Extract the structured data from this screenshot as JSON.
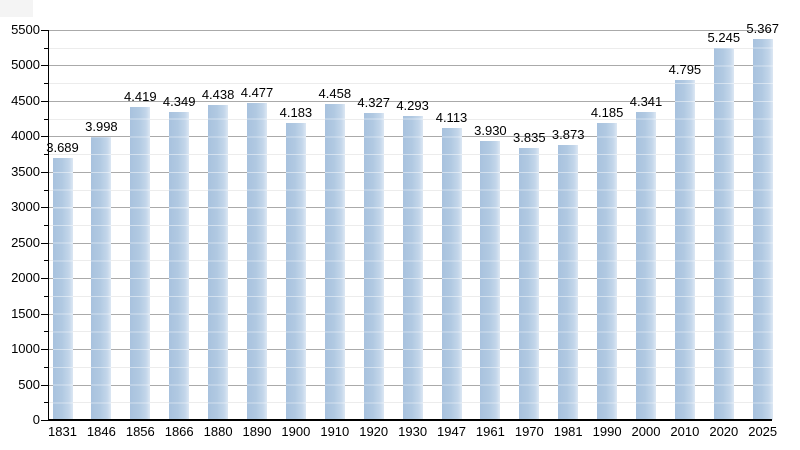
{
  "chart_data": {
    "type": "bar",
    "title": "",
    "xlabel": "",
    "ylabel": "",
    "categories": [
      "1831",
      "1846",
      "1856",
      "1866",
      "1880",
      "1890",
      "1900",
      "1910",
      "1920",
      "1930",
      "1947",
      "1961",
      "1970",
      "1981",
      "1990",
      "2000",
      "2010",
      "2020",
      "2025"
    ],
    "values": [
      3689,
      3998,
      4419,
      4349,
      4438,
      4477,
      4183,
      4458,
      4327,
      4293,
      4113,
      3930,
      3835,
      3873,
      4185,
      4341,
      4795,
      5245,
      5367
    ],
    "value_labels": [
      "3.689",
      "3.998",
      "4.419",
      "4.349",
      "4.438",
      "4.477",
      "4.183",
      "4.458",
      "4.327",
      "4.293",
      "4.113",
      "3.930",
      "3.835",
      "3.873",
      "4.185",
      "4.341",
      "4.795",
      "5.245",
      "5.367"
    ],
    "ylim": [
      0,
      5500
    ],
    "y_major_step": 500,
    "y_minor_step": 250,
    "y_tick_labels": [
      "0",
      "500",
      "1000",
      "1500",
      "2000",
      "2500",
      "3000",
      "3500",
      "4000",
      "4500",
      "5000",
      "5500"
    ],
    "grid": "on",
    "legend": "none",
    "colors": {
      "bar_main": "#b1c9e2",
      "bar_edge_light": "#dce7f3",
      "major_grid": "#aaaaaa",
      "minor_grid": "#ececec",
      "axis": "#000000",
      "label_text": "#000000",
      "background": "#ffffff"
    }
  }
}
